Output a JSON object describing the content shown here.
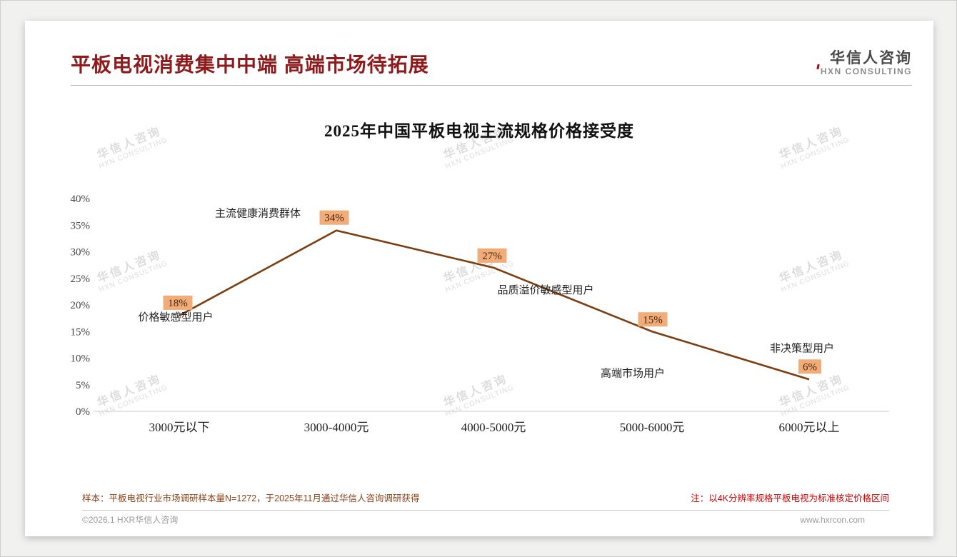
{
  "header": {
    "title": "平板电视消费集中中端 高端市场待拓展",
    "logo": {
      "cn": "华信人咨询",
      "en": "HXN CONSULTING"
    }
  },
  "watermark": {
    "cn": "华信人咨询",
    "en": "HXN CONSULTING"
  },
  "chart_data": {
    "type": "line",
    "title": "2025年中国平板电视主流规格价格接受度",
    "categories": [
      "3000元以下",
      "3000-4000元",
      "4000-5000元",
      "5000-6000元",
      "6000元以上"
    ],
    "values": [
      18,
      34,
      27,
      15,
      6
    ],
    "value_labels": [
      "18%",
      "34%",
      "27%",
      "15%",
      "6%"
    ],
    "annotations": [
      "价格敏感型用户",
      "主流健康消费群体",
      "品质溢价敏感型用户",
      "高端市场用户",
      "非决策型用户"
    ],
    "ylim": [
      0,
      40
    ],
    "ytick_step": 5,
    "ytick_labels": [
      "0%",
      "5%",
      "10%",
      "15%",
      "20%",
      "25%",
      "30%",
      "35%",
      "40%"
    ],
    "grid": false,
    "legend": false,
    "line_color": "#7a3e10",
    "value_label_bg": "#f0ac79"
  },
  "footer": {
    "note_left": "样本：平板电视行业市场调研样本量N=1272，于2025年11月通过华信人咨询调研获得",
    "note_right": "注：以4K分辨率规格平板电视为标准核定价格区间",
    "copyright": "©2026.1 HXR华信人咨询",
    "website": "www.hxrcon.com"
  }
}
